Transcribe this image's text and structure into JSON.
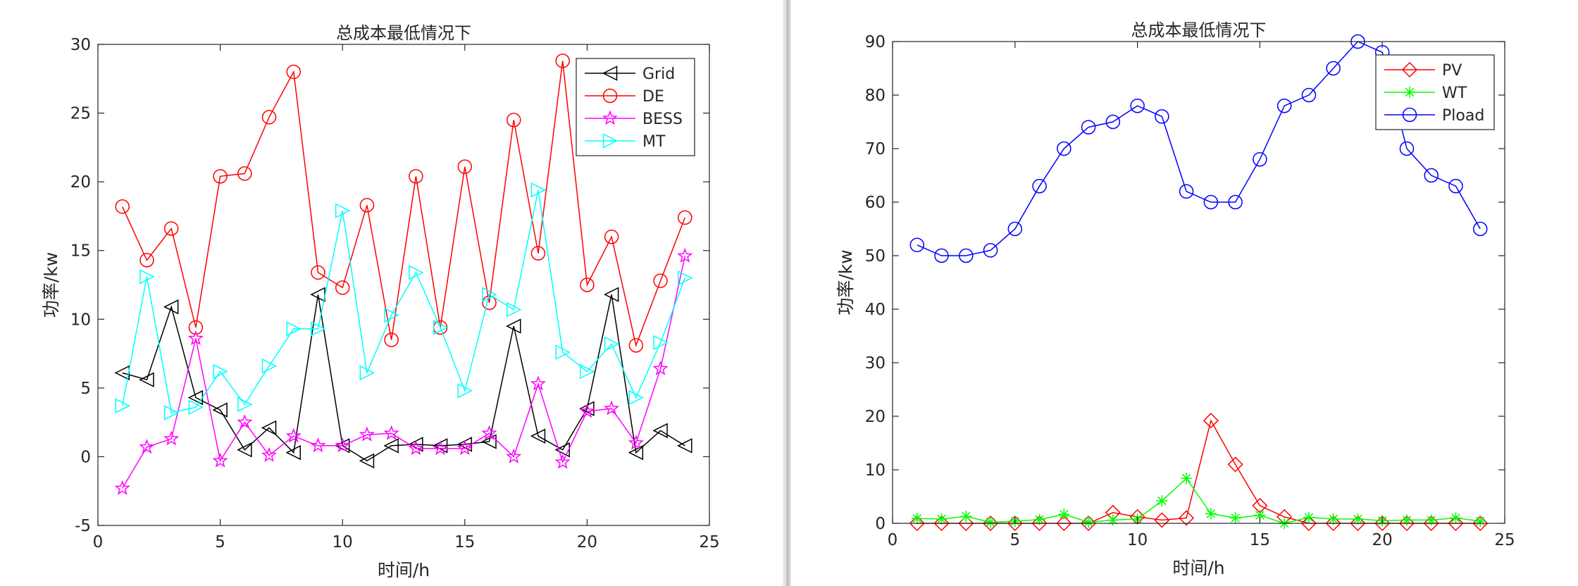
{
  "chart_data": [
    {
      "type": "line",
      "title": "总成本最低情况下",
      "xlabel": "时间/h",
      "ylabel": "功率/kw",
      "xlim": [
        0,
        25
      ],
      "ylim": [
        -5,
        30
      ],
      "xticks": [
        0,
        5,
        10,
        15,
        20,
        25
      ],
      "yticks": [
        -5,
        0,
        5,
        10,
        15,
        20,
        25,
        30
      ],
      "x": [
        1,
        2,
        3,
        4,
        5,
        6,
        7,
        8,
        9,
        10,
        11,
        12,
        13,
        14,
        15,
        16,
        17,
        18,
        19,
        20,
        21,
        22,
        23,
        24
      ],
      "legend_position": "top-right",
      "grid": false,
      "series": [
        {
          "name": "Grid",
          "color": "#000000",
          "marker": "triangle-left",
          "values": [
            6.1,
            5.6,
            10.9,
            4.3,
            3.4,
            0.5,
            2.1,
            0.3,
            11.8,
            0.8,
            -0.3,
            0.8,
            0.9,
            0.8,
            0.9,
            1.1,
            9.5,
            1.5,
            0.5,
            3.5,
            11.8,
            0.3,
            1.9,
            0.8
          ]
        },
        {
          "name": "DE",
          "color": "#ff0000",
          "marker": "circle",
          "values": [
            18.2,
            14.3,
            16.6,
            9.4,
            20.4,
            20.6,
            24.7,
            28.0,
            13.4,
            12.3,
            18.3,
            8.5,
            20.4,
            9.4,
            21.1,
            11.2,
            24.5,
            14.8,
            28.8,
            12.5,
            16.0,
            8.1,
            12.8,
            17.4
          ]
        },
        {
          "name": "BESS",
          "color": "#ff00ff",
          "marker": "star",
          "values": [
            -2.3,
            0.7,
            1.3,
            8.6,
            -0.3,
            2.5,
            0.1,
            1.5,
            0.8,
            0.8,
            1.6,
            1.7,
            0.6,
            0.6,
            0.6,
            1.7,
            0.0,
            5.3,
            -0.4,
            3.3,
            3.5,
            1.0,
            6.4,
            14.6
          ]
        },
        {
          "name": "MT",
          "color": "#00ffff",
          "marker": "triangle-right",
          "values": [
            3.7,
            13.1,
            3.2,
            3.6,
            6.2,
            3.8,
            6.6,
            9.3,
            9.3,
            17.9,
            6.1,
            10.3,
            13.4,
            9.4,
            4.8,
            11.8,
            10.7,
            19.4,
            7.6,
            6.2,
            8.2,
            4.3,
            8.3,
            13.0
          ]
        }
      ]
    },
    {
      "type": "line",
      "title": "总成本最低情况下",
      "xlabel": "时间/h",
      "ylabel": "功率/kw",
      "xlim": [
        0,
        25
      ],
      "ylim": [
        0,
        90
      ],
      "xticks": [
        0,
        5,
        10,
        15,
        20,
        25
      ],
      "yticks": [
        0,
        10,
        20,
        30,
        40,
        50,
        60,
        70,
        80,
        90
      ],
      "x": [
        1,
        2,
        3,
        4,
        5,
        6,
        7,
        8,
        9,
        10,
        11,
        12,
        13,
        14,
        15,
        16,
        17,
        18,
        19,
        20,
        21,
        22,
        23,
        24
      ],
      "legend_position": "top-right",
      "grid": false,
      "series": [
        {
          "name": "PV",
          "color": "#ff0000",
          "marker": "diamond",
          "values": [
            0,
            0,
            0,
            0,
            0,
            0,
            0,
            0,
            2.0,
            1.2,
            0.6,
            1.0,
            19.2,
            11.0,
            3.3,
            1.2,
            0,
            0,
            0,
            0,
            0,
            0,
            0,
            0
          ]
        },
        {
          "name": "WT",
          "color": "#00ff00",
          "marker": "asterisk",
          "values": [
            0.9,
            0.8,
            1.3,
            0.2,
            0.4,
            0.7,
            1.7,
            0.2,
            0.6,
            0.8,
            4.2,
            8.4,
            1.8,
            1.0,
            1.5,
            0,
            1.1,
            0.8,
            0.8,
            0.5,
            0.6,
            0.6,
            1.0,
            0.4
          ]
        },
        {
          "name": "Pload",
          "color": "#0000ff",
          "marker": "circle",
          "values": [
            52,
            50,
            50,
            51,
            55,
            63,
            70,
            74,
            75,
            78,
            76,
            62,
            60,
            60,
            68,
            78,
            80,
            85,
            90,
            88,
            70,
            65,
            63,
            55
          ]
        }
      ]
    }
  ]
}
